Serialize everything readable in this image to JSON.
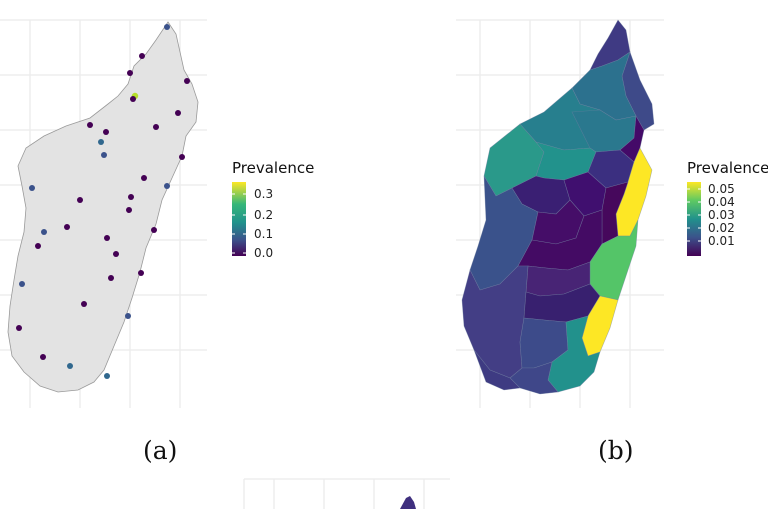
{
  "panels": [
    {
      "id": "a",
      "caption": "(a)",
      "legend": {
        "title": "Prevalence",
        "labels": [
          "0.3",
          "0.2",
          "0.1",
          "0.0"
        ],
        "gradient": [
          "#fde725",
          "#35b779",
          "#21918c",
          "#3b528b",
          "#440154"
        ]
      }
    },
    {
      "id": "b",
      "caption": "(b)",
      "legend": {
        "title": "Prevalence",
        "labels": [
          "0.05",
          "0.04",
          "0.03",
          "0.02",
          "0.01"
        ],
        "gradient": [
          "#fde725",
          "#5ec962",
          "#21918c",
          "#3b528b",
          "#440154"
        ]
      }
    }
  ],
  "colors": {
    "land": "#e3e3e3",
    "grid": "#ebebeb",
    "viridis_low": "#440154",
    "viridis_mid": "#21918c",
    "viridis_high": "#fde725"
  }
}
